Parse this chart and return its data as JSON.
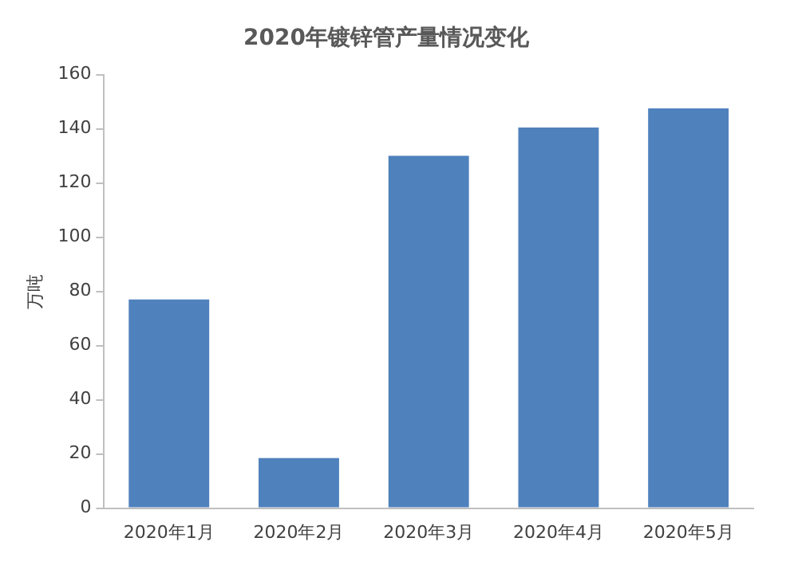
{
  "chart_data": {
    "type": "bar",
    "title": "2020年镀锌管产量情况变化",
    "ylabel": "万吨",
    "categories": [
      "2020年1月",
      "2020年2月",
      "2020年3月",
      "2020年4月",
      "2020年5月"
    ],
    "values": [
      77,
      18.5,
      130,
      140.5,
      147.5
    ],
    "color": "#4f81bd",
    "ylim": [
      0,
      160
    ],
    "yticks": [
      0,
      20,
      40,
      60,
      80,
      100,
      120,
      140,
      160
    ],
    "grid": false,
    "legend": false
  }
}
